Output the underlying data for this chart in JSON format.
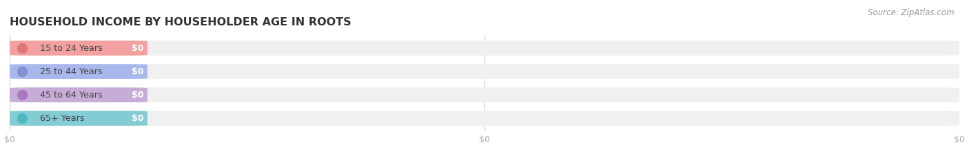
{
  "title": "HOUSEHOLD INCOME BY HOUSEHOLDER AGE IN ROOTS",
  "source_text": "Source: ZipAtlas.com",
  "categories": [
    "15 to 24 Years",
    "25 to 44 Years",
    "45 to 64 Years",
    "65+ Years"
  ],
  "values": [
    0,
    0,
    0,
    0
  ],
  "bar_colors": [
    "#f2a0a0",
    "#a8b8ec",
    "#c8acd8",
    "#84ccd4"
  ],
  "dot_colors": [
    "#e07878",
    "#8090d0",
    "#a878c0",
    "#50b8c0"
  ],
  "background_color": "#ffffff",
  "bar_bg_color": "#f0f0f0",
  "bar_height": 0.62,
  "tick_label_color": "#aaaaaa",
  "title_color": "#333333",
  "source_color": "#999999",
  "figure_width": 14.06,
  "figure_height": 2.33,
  "xlim": [
    0,
    1
  ],
  "xticks": [
    0.0,
    0.5,
    1.0
  ],
  "xtick_labels": [
    "$0",
    "$0",
    "$0"
  ]
}
